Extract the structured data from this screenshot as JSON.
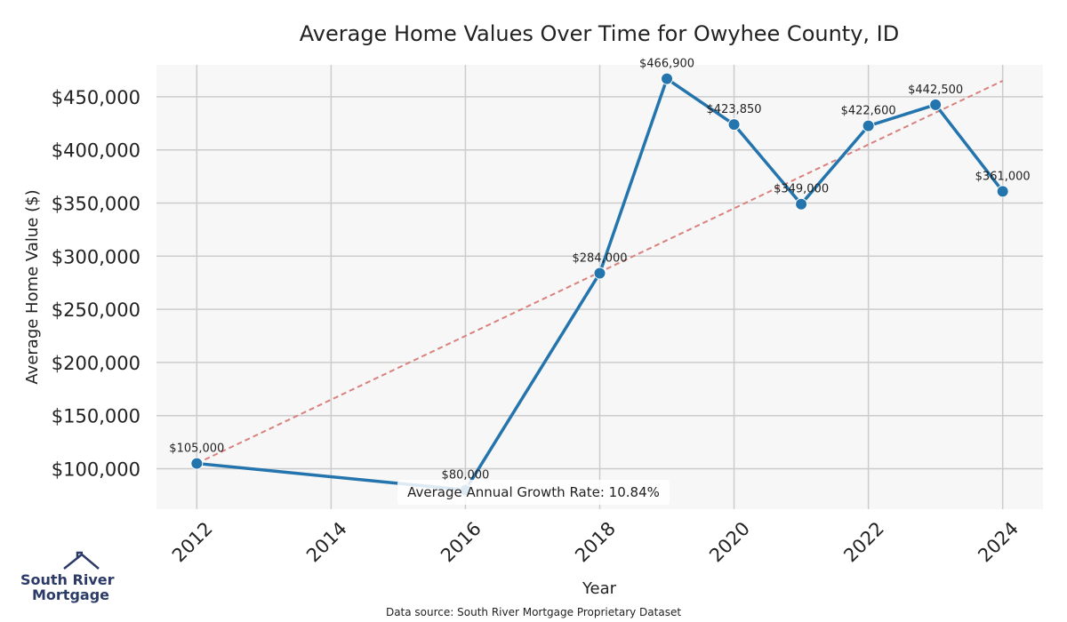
{
  "chart_data": {
    "type": "line",
    "title": "Average Home Values Over Time for Owyhee County, ID",
    "xlabel": "Year",
    "ylabel": "Average Home Value ($)",
    "x": [
      2012,
      2016,
      2018,
      2019,
      2020,
      2021,
      2022,
      2023,
      2024
    ],
    "series": [
      {
        "values": [
          105000,
          80000,
          284000,
          466900,
          423850,
          349000,
          422600,
          442500,
          361000
        ],
        "labels": [
          "$105,000",
          "$80,000",
          "$284,000",
          "$466,900",
          "$423,850",
          "$349,000",
          "$422,600",
          "$442,500",
          "$361,000"
        ],
        "color": "#2474ad"
      }
    ],
    "trendline": {
      "x": [
        2012,
        2024
      ],
      "y": [
        105000,
        465000
      ],
      "color": "#d9817e",
      "style": "dashed"
    },
    "xlim": [
      2011.4,
      2024.6
    ],
    "ylim": [
      62000,
      480000
    ],
    "xticks": [
      2012,
      2014,
      2016,
      2018,
      2020,
      2022,
      2024
    ],
    "xtick_labels": [
      "2012",
      "2014",
      "2016",
      "2018",
      "2020",
      "2022",
      "2024"
    ],
    "yticks": [
      100000,
      150000,
      200000,
      250000,
      300000,
      350000,
      400000,
      450000
    ],
    "ytick_labels": [
      "$100,000",
      "$150,000",
      "$200,000",
      "$250,000",
      "$300,000",
      "$350,000",
      "$400,000",
      "$450,000"
    ],
    "grid": true,
    "annotation": "Average Annual Growth Rate: 10.84%",
    "source": "Data source: South River Mortgage Proprietary Dataset"
  },
  "logo": {
    "line1": "South River",
    "line2": "Mortgage",
    "color": "#2b3a67"
  }
}
